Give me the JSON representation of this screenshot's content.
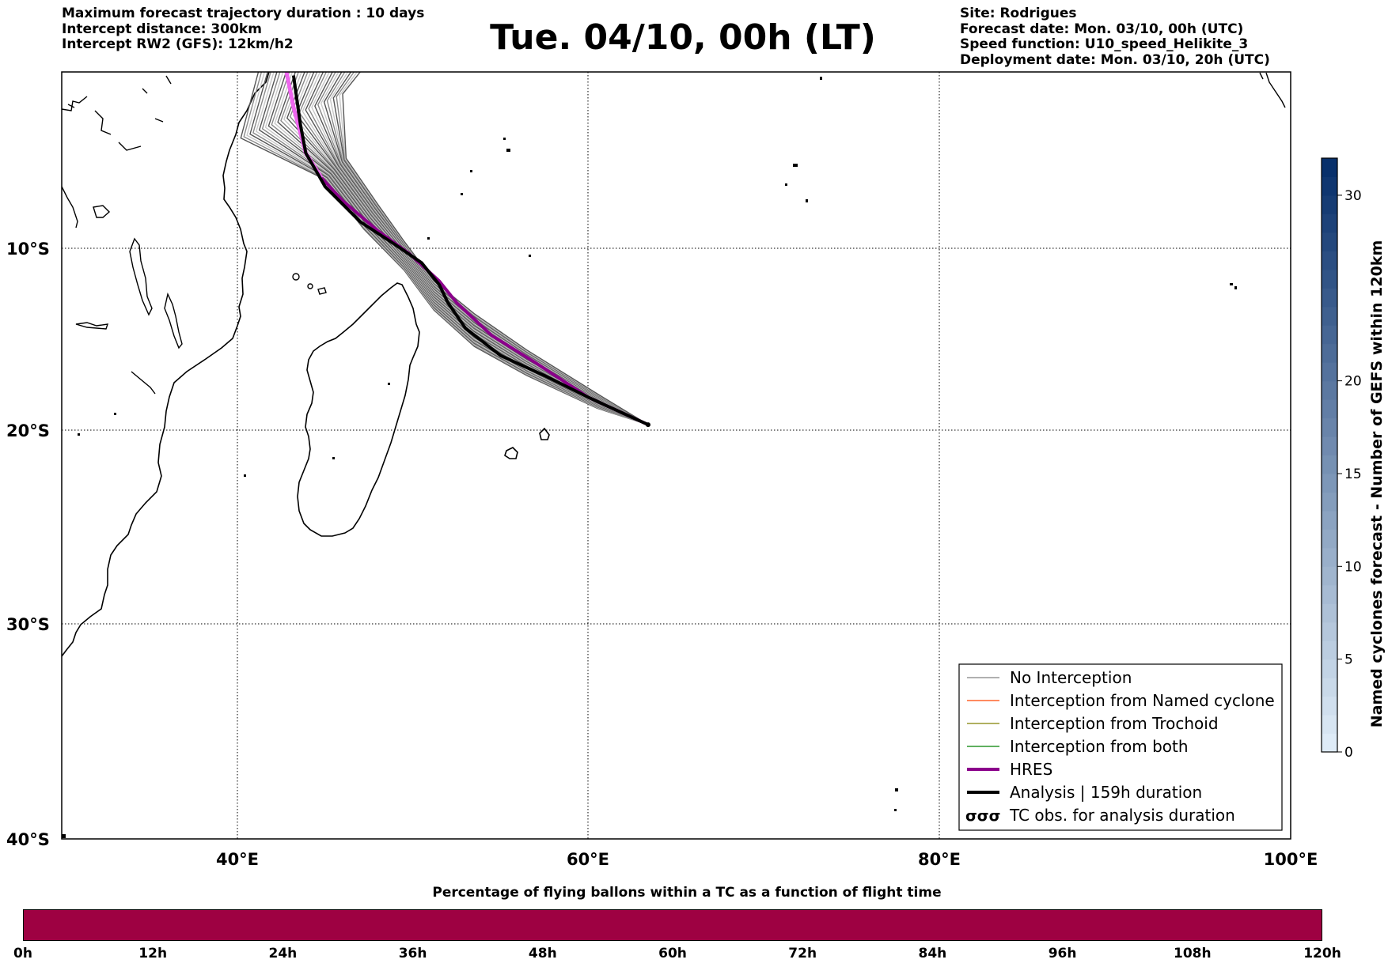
{
  "header_left": {
    "line1": "Maximum forecast trajectory duration : 10 days",
    "line2": "Intercept distance: 300km",
    "line3": "Intercept RW2 (GFS):  12km/h2"
  },
  "title": "Tue. 04/10, 00h (LT)",
  "header_right": {
    "line1": "Site: Rodrigues",
    "line2": "Forecast date: Mon. 03/10, 00h (UTC)",
    "line3": "Speed function: U10_speed_Helikite_3",
    "line4": "Deployment date: Mon. 03/10, 20h (UTC)"
  },
  "map": {
    "lon_range": [
      30,
      100
    ],
    "lat_range": [
      -40,
      0
    ],
    "lat_labels": [
      "10°S",
      "20°S",
      "30°S",
      "40°S"
    ],
    "lon_labels": [
      "40°E",
      "60°E",
      "80°E",
      "100°E"
    ],
    "gridlines": true
  },
  "trajectories": {
    "release_point": {
      "lon": 63.4,
      "lat": -19.7
    },
    "analysis": {
      "label": "Analysis | 159h duration",
      "color": "#000000",
      "points": [
        [
          63.4,
          -19.7
        ],
        [
          60,
          -18.2
        ],
        [
          57.5,
          -17
        ],
        [
          55,
          -15.9
        ],
        [
          53,
          -14.4
        ],
        [
          52,
          -13
        ],
        [
          51.5,
          -12
        ],
        [
          50.5,
          -10.8
        ],
        [
          49,
          -9.8
        ],
        [
          47,
          -8.5
        ],
        [
          45,
          -6.5
        ],
        [
          44.6,
          -5.8
        ],
        [
          43.9,
          -4.6
        ],
        [
          43.6,
          -3
        ],
        [
          43.2,
          -0.2
        ]
      ]
    },
    "hres": {
      "label": "HRES",
      "color": "#8b008b",
      "points": [
        [
          63.4,
          -19.7
        ],
        [
          60,
          -18.2
        ],
        [
          57,
          -16.3
        ],
        [
          54.5,
          -14.8
        ],
        [
          52.5,
          -13
        ],
        [
          51.5,
          -11.8
        ],
        [
          49.8,
          -10.3
        ],
        [
          48,
          -9
        ],
        [
          46,
          -7.3
        ],
        [
          44.8,
          -6
        ],
        [
          43.9,
          -4.6
        ],
        [
          43.2,
          -2
        ],
        [
          42.8,
          0
        ]
      ]
    },
    "ensemble_colors": [
      "#555555",
      "#8a8a8a",
      "#c8c8c8"
    ]
  },
  "legend": {
    "items": [
      {
        "label": "No Interception",
        "color": "#808080",
        "kind": "line-thin"
      },
      {
        "label": "Interception from Named cyclone",
        "color": "#ff4500",
        "kind": "line-thin"
      },
      {
        "label": "Interception from Trochoid",
        "color": "#808000",
        "kind": "line-thin"
      },
      {
        "label": "Interception from both",
        "color": "#008000",
        "kind": "line-thin"
      },
      {
        "label": "HRES",
        "color": "#8b008b",
        "kind": "line-thick"
      },
      {
        "label": "Analysis | 159h duration",
        "color": "#000000",
        "kind": "line-thick"
      },
      {
        "label": "TC obs. for analysis duration",
        "color": "#000000",
        "kind": "cyclone-symbols"
      }
    ]
  },
  "colorbar": {
    "label": "Named cyclones forecast - Number of GEFS within 120km",
    "min": 0,
    "max": 32,
    "ticks": [
      "0",
      "5",
      "10",
      "15",
      "20",
      "30"
    ],
    "tick_values": [
      0,
      5,
      10,
      15,
      20,
      30
    ],
    "color_low": "#deebf7",
    "color_high": "#08306b"
  },
  "bottom_bar": {
    "title": "Percentage of flying ballons within a TC as a function of flight time",
    "color": "#9e0142",
    "time_labels": [
      "0h",
      "12h",
      "24h",
      "36h",
      "48h",
      "60h",
      "72h",
      "84h",
      "96h",
      "108h",
      "120h"
    ]
  }
}
